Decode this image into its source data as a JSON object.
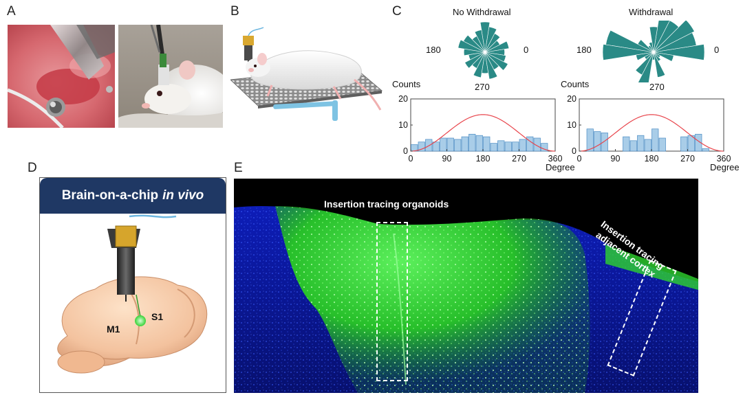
{
  "panels": {
    "A": {
      "letter": "A"
    },
    "B": {
      "letter": "B"
    },
    "C": {
      "letter": "C",
      "rose_titles": [
        "No Withdrawal",
        "Withdrawal"
      ],
      "rose_angle_labels": {
        "left": "180",
        "right": "0",
        "bottom": "270"
      },
      "counts_label": "Counts",
      "degree_label": "Degree"
    },
    "D": {
      "letter": "D",
      "banner_text_normal": "Brain-on-a-chip",
      "banner_text_italic": "in vivo",
      "labels": {
        "m1": "M1",
        "s1": "S1"
      }
    },
    "E": {
      "letter": "E",
      "annotation_organoids": "Insertion tracing organoids",
      "annotation_cortex_line1": "Insertion tracing",
      "annotation_cortex_line2": "adjacent cortex"
    }
  },
  "colors": {
    "rose_fill": "#2a8a86",
    "hist_fill": "#a9cde8",
    "hist_edge": "#4a8cc4",
    "fit_line": "#e8434a",
    "banner": "#1f3864",
    "fluor_green": "#2edc2e",
    "fluor_blue": "#0a1aa0"
  },
  "chart_data": [
    {
      "type": "bar",
      "panel": "C-left-histogram",
      "title": "",
      "xlabel": "Degree",
      "ylabel": "Counts",
      "xlim": [
        0,
        360
      ],
      "ylim": [
        0,
        20
      ],
      "xticks": [
        0,
        90,
        180,
        270,
        360
      ],
      "yticks": [
        0,
        10,
        20
      ],
      "bin_width": 18,
      "x": [
        9,
        27,
        45,
        63,
        81,
        99,
        117,
        135,
        153,
        171,
        189,
        207,
        225,
        243,
        261,
        279,
        297,
        315,
        333,
        351
      ],
      "values": [
        2.5,
        3.5,
        4.5,
        3.5,
        5,
        5,
        4.5,
        5.5,
        6.5,
        6,
        5.5,
        3,
        4,
        3.5,
        3.5,
        4.5,
        5.5,
        5,
        3,
        0
      ],
      "fit_curve": {
        "type": "gaussian",
        "peak_x": 180,
        "peak_y": 14
      }
    },
    {
      "type": "bar",
      "panel": "C-right-histogram",
      "title": "",
      "xlabel": "Degree",
      "ylabel": "Counts",
      "xlim": [
        0,
        360
      ],
      "ylim": [
        0,
        20
      ],
      "xticks": [
        0,
        90,
        180,
        270,
        360
      ],
      "yticks": [
        0,
        10,
        20
      ],
      "bin_width": 18,
      "x": [
        9,
        27,
        45,
        63,
        81,
        99,
        117,
        135,
        153,
        171,
        189,
        207,
        225,
        243,
        261,
        279,
        297,
        315,
        333,
        351
      ],
      "values": [
        0,
        8.5,
        7.5,
        7,
        0,
        0,
        5.5,
        4,
        6,
        4.5,
        8.5,
        5,
        0,
        0,
        5.5,
        6,
        6.5,
        1,
        0,
        0
      ],
      "fit_curve": {
        "type": "gaussian",
        "peak_x": 180,
        "peak_y": 14
      }
    },
    {
      "type": "rose",
      "panel": "C-left-rose",
      "title": "No Withdrawal",
      "angle_labels": [
        "180",
        "0",
        "270"
      ],
      "bin_width_deg": 18,
      "angles_deg": [
        0,
        18,
        36,
        54,
        72,
        90,
        108,
        126,
        144,
        162,
        180,
        198,
        216,
        234,
        252,
        270,
        288,
        306,
        324,
        342
      ],
      "values": [
        0.65,
        0.8,
        0.55,
        0.7,
        0.85,
        1.0,
        0.75,
        0.6,
        0.8,
        0.9,
        0.7,
        0.55,
        0.75,
        0.6,
        0.85,
        0.7,
        0.9,
        0.65,
        0.85,
        0.7
      ]
    },
    {
      "type": "rose",
      "panel": "C-right-rose",
      "title": "Withdrawal",
      "angle_labels": [
        "180",
        "0",
        "270"
      ],
      "bin_width_deg": 18,
      "angles_deg": [
        0,
        18,
        36,
        54,
        72,
        90,
        108,
        126,
        144,
        162,
        180,
        198,
        216,
        234,
        252,
        270,
        288,
        306,
        324,
        342
      ],
      "values": [
        1.0,
        0.85,
        0.9,
        0.7,
        0.85,
        0.5,
        0.2,
        0.15,
        0.35,
        0.95,
        1.0,
        0.35,
        0.2,
        0.5,
        0.7,
        0.15,
        0.5,
        0.2,
        0.15,
        0.4
      ]
    }
  ]
}
